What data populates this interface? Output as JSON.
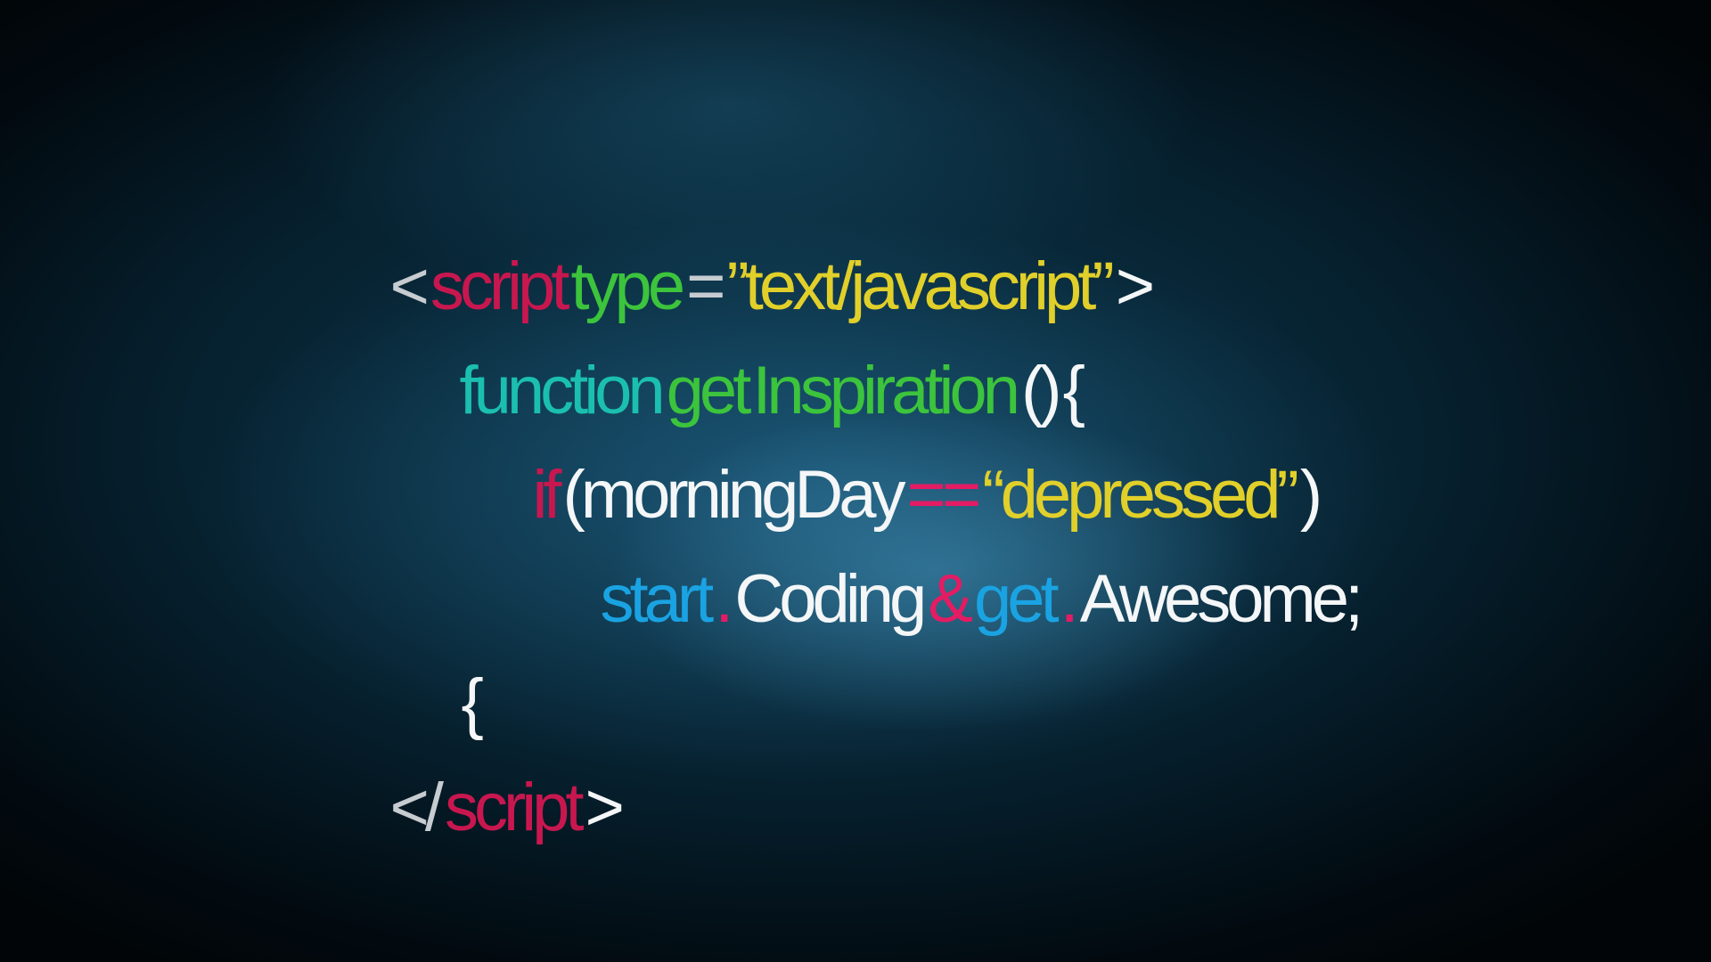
{
  "code_lines": [
    {
      "tokens": [
        "<",
        "script",
        "type",
        "=",
        "”text/javascript”",
        ">"
      ]
    },
    {
      "tokens": [
        "function",
        "get",
        "Inspiration",
        "()",
        "{"
      ]
    },
    {
      "tokens": [
        "if",
        "(morningDay",
        "==",
        "“depressed”",
        ")"
      ]
    },
    {
      "tokens": [
        "start",
        ".",
        "Coding",
        "&",
        "get",
        ".",
        "Awesome;"
      ]
    },
    {
      "tokens": [
        "{"
      ]
    },
    {
      "tokens": [
        "</",
        "script",
        ">"
      ]
    }
  ]
}
